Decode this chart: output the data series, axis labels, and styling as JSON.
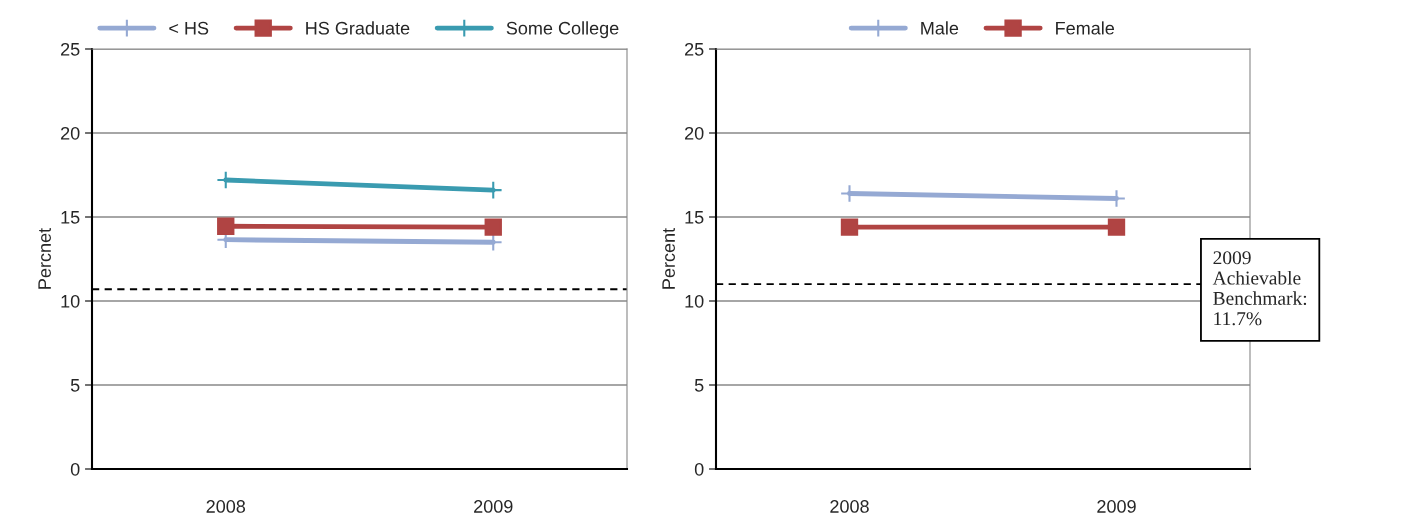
{
  "chart_data": [
    {
      "type": "line",
      "categories": [
        "2008",
        "2009"
      ],
      "ylabel": "Percnet",
      "ylim": [
        0,
        25
      ],
      "yticks": [
        0,
        5,
        10,
        15,
        20,
        25
      ],
      "grid": "y",
      "legend": "top",
      "series": [
        {
          "name": "< HS",
          "color": "#95a9d3",
          "values": [
            13.65,
            13.5
          ],
          "marker": "cross"
        },
        {
          "name": "HS Graduate",
          "color": "#b04443",
          "values": [
            14.45,
            14.4
          ],
          "marker": "square"
        },
        {
          "name": "Some College",
          "color": "#3a9bb0",
          "values": [
            17.2,
            16.6
          ],
          "marker": "cross"
        }
      ],
      "ref_lines": [
        {
          "axis": "y",
          "value": 10.7,
          "color": "#000000",
          "line_style": "dashed"
        }
      ]
    },
    {
      "type": "line",
      "categories": [
        "2008",
        "2009"
      ],
      "ylabel": "Percent",
      "ylim": [
        0,
        25
      ],
      "yticks": [
        0,
        5,
        10,
        15,
        20,
        25
      ],
      "grid": "y",
      "legend": "top",
      "series": [
        {
          "name": "Male",
          "color": "#95a9d3",
          "values": [
            16.4,
            16.1
          ],
          "marker": "cross"
        },
        {
          "name": "Female",
          "color": "#b04443",
          "values": [
            14.4,
            14.4
          ],
          "marker": "square"
        }
      ],
      "ref_lines": [
        {
          "axis": "y",
          "value": 11.0,
          "color": "#000000",
          "line_style": "dashed"
        }
      ],
      "annotations": [
        "2009\nAchievable\nBenchmark:\n11.7%"
      ]
    }
  ]
}
